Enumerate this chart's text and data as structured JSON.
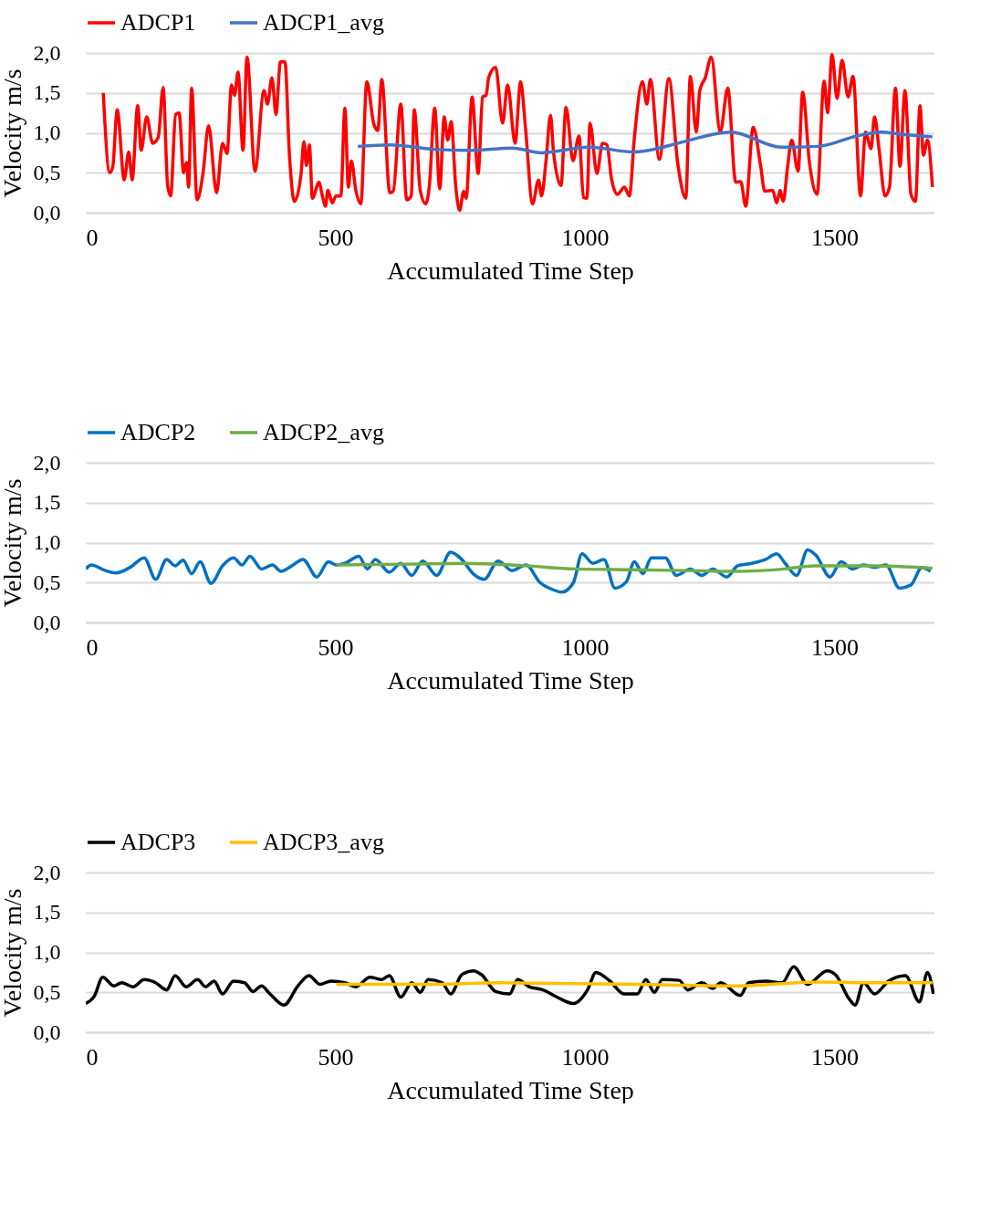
{
  "chart_data": [
    {
      "type": "line",
      "xlabel": "Accumulated Time Step",
      "ylabel": "Velocity m/s",
      "xlim": [
        0,
        1700
      ],
      "xticks": [
        0,
        500,
        1000,
        1500
      ],
      "ylim": [
        0,
        2
      ],
      "yticks": [
        {
          "value": 0,
          "label": "0,0"
        },
        {
          "value": 0.5,
          "label": "0,5"
        },
        {
          "value": 1,
          "label": "1,0"
        },
        {
          "value": 1.5,
          "label": "1,5"
        },
        {
          "value": 2,
          "label": "2,0"
        }
      ],
      "grid": "y",
      "legend": "top",
      "series": [
        {
          "name": "ADCP1",
          "color": "#ff0000",
          "x": [
            35,
            48,
            54,
            63,
            77,
            86,
            93,
            104,
            111,
            122,
            134,
            145,
            155,
            164,
            170,
            180,
            187,
            196,
            202,
            206,
            212,
            223,
            235,
            246,
            262,
            274,
            283,
            292,
            298,
            305,
            315,
            323,
            339,
            357,
            364,
            373,
            381,
            390,
            399,
            408,
            418,
            431,
            437,
            442,
            448,
            454,
            467,
            474,
            480,
            485,
            494,
            501,
            511,
            519,
            526,
            532,
            541,
            551,
            563,
            577,
            585,
            593,
            609,
            616,
            631,
            643,
            652,
            658,
            670,
            681,
            688,
            699,
            709,
            718,
            725,
            732,
            741,
            749,
            757,
            762,
            774,
            786,
            795,
            802,
            807,
            821,
            835,
            845,
            860,
            871,
            881,
            895,
            907,
            913,
            922,
            931,
            937,
            952,
            962,
            976,
            988,
            997,
            1004,
            1010,
            1024,
            1035,
            1044,
            1053,
            1065,
            1079,
            1089,
            1099,
            1115,
            1124,
            1131,
            1149,
            1168,
            1186,
            1202,
            1211,
            1223,
            1230,
            1241,
            1253,
            1271,
            1286,
            1302,
            1312,
            1322,
            1337,
            1352,
            1360,
            1376,
            1384,
            1391,
            1397,
            1406,
            1414,
            1427,
            1436,
            1450,
            1465,
            1479,
            1486,
            1495,
            1505,
            1515,
            1527,
            1537,
            1552,
            1562,
            1573,
            1580,
            1589,
            1601,
            1610,
            1622,
            1631,
            1641,
            1653,
            1662,
            1671,
            1678,
            1686,
            1696
          ],
          "values": [
            1.5,
            0.5,
            0.57,
            1.29,
            0.41,
            0.76,
            0.41,
            1.34,
            0.78,
            1.2,
            0.87,
            0.94,
            1.57,
            0.34,
            0.21,
            1.23,
            1.25,
            0.5,
            0.63,
            0.32,
            1.56,
            0.16,
            0.5,
            1.09,
            0.25,
            0.87,
            0.74,
            1.6,
            1.47,
            1.76,
            0.78,
            1.95,
            0.52,
            1.53,
            1.36,
            1.69,
            1.23,
            1.89,
            1.89,
            0.72,
            0.14,
            0.47,
            0.89,
            0.59,
            0.85,
            0.18,
            0.38,
            0.21,
            0.08,
            0.28,
            0.12,
            0.21,
            0.21,
            1.31,
            0.32,
            0.65,
            0.28,
            0.11,
            1.64,
            1.11,
            1.03,
            1.67,
            0.25,
            0.27,
            1.36,
            0.16,
            0.21,
            1.29,
            0.28,
            0.11,
            0.32,
            1.31,
            0.3,
            1.2,
            0.91,
            1.14,
            0.34,
            0.03,
            0.27,
            0.18,
            1.45,
            0.49,
            1.45,
            1.47,
            1.69,
            1.82,
            1.12,
            1.6,
            0.87,
            1.64,
            1.05,
            0.11,
            0.41,
            0.21,
            0.65,
            1.22,
            0.76,
            0.34,
            1.32,
            0.65,
            0.96,
            0.19,
            0.18,
            1.12,
            0.49,
            0.87,
            0.85,
            0.43,
            0.23,
            0.32,
            0.21,
            0.94,
            1.64,
            1.36,
            1.67,
            0.67,
            1.68,
            0.61,
            0.18,
            1.71,
            1.01,
            1.53,
            1.69,
            1.95,
            1.01,
            1.56,
            0.38,
            0.39,
            0.08,
            1.07,
            0.58,
            0.27,
            0.28,
            0.12,
            0.28,
            0.14,
            0.58,
            0.91,
            0.52,
            1.51,
            0.61,
            0.23,
            1.65,
            1.25,
            1.98,
            1.43,
            1.91,
            1.45,
            1.71,
            0.21,
            1.01,
            0.8,
            1.2,
            0.8,
            0.21,
            0.32,
            1.56,
            0.58,
            1.53,
            0.23,
            0.14,
            1.34,
            0.72,
            0.91,
            0.32
          ]
        },
        {
          "name": "ADCP1_avg",
          "color": "#4472c4",
          "x": [
            545,
            610,
            702,
            770,
            855,
            913,
            1008,
            1098,
            1187,
            1211,
            1292,
            1393,
            1467,
            1545,
            1593,
            1634,
            1696
          ],
          "values": [
            0.83,
            0.85,
            0.79,
            0.78,
            0.81,
            0.75,
            0.82,
            0.76,
            0.87,
            0.91,
            1.01,
            0.82,
            0.83,
            0.96,
            1.01,
            0.98,
            0.95
          ]
        }
      ]
    },
    {
      "type": "line",
      "xlabel": "Accumulated Time Step",
      "ylabel": "Velocity m/s",
      "xlim": [
        0,
        1700
      ],
      "xticks": [
        0,
        500,
        1000,
        1500
      ],
      "ylim": [
        0,
        2
      ],
      "yticks": [
        {
          "value": 0,
          "label": "0,0"
        },
        {
          "value": 0.5,
          "label": "0,5"
        },
        {
          "value": 1,
          "label": "1,0"
        },
        {
          "value": 1.5,
          "label": "1,5"
        },
        {
          "value": 2,
          "label": "2,0"
        }
      ],
      "grid": "y",
      "legend": "top",
      "series": [
        {
          "name": "ADCP2",
          "color": "#0070c0",
          "x": [
            0,
            11,
            39,
            61,
            89,
            117,
            140,
            162,
            179,
            195,
            212,
            229,
            251,
            274,
            296,
            313,
            329,
            352,
            374,
            391,
            413,
            435,
            463,
            486,
            502,
            519,
            547,
            564,
            580,
            608,
            631,
            653,
            675,
            703,
            731,
            753,
            776,
            798,
            826,
            854,
            882,
            910,
            932,
            954,
            977,
            994,
            1016,
            1038,
            1060,
            1083,
            1099,
            1116,
            1133,
            1161,
            1183,
            1211,
            1234,
            1256,
            1284,
            1306,
            1334,
            1362,
            1384,
            1401,
            1424,
            1446,
            1463,
            1491,
            1513,
            1536,
            1558,
            1580,
            1603,
            1630,
            1653,
            1675,
            1692
          ],
          "values": [
            0.67,
            0.72,
            0.65,
            0.62,
            0.69,
            0.81,
            0.54,
            0.79,
            0.71,
            0.78,
            0.61,
            0.76,
            0.49,
            0.71,
            0.81,
            0.72,
            0.83,
            0.67,
            0.72,
            0.64,
            0.71,
            0.79,
            0.57,
            0.76,
            0.72,
            0.74,
            0.83,
            0.67,
            0.79,
            0.63,
            0.74,
            0.59,
            0.77,
            0.59,
            0.88,
            0.79,
            0.61,
            0.54,
            0.77,
            0.65,
            0.72,
            0.5,
            0.42,
            0.38,
            0.5,
            0.86,
            0.74,
            0.79,
            0.43,
            0.51,
            0.76,
            0.61,
            0.81,
            0.81,
            0.59,
            0.67,
            0.59,
            0.67,
            0.57,
            0.71,
            0.74,
            0.79,
            0.86,
            0.74,
            0.59,
            0.91,
            0.84,
            0.57,
            0.76,
            0.67,
            0.72,
            0.69,
            0.72,
            0.43,
            0.47,
            0.69,
            0.64
          ]
        },
        {
          "name": "ADCP2_avg",
          "color": "#70ad47",
          "x": [
            502,
            640,
            760,
            880,
            980,
            1100,
            1200,
            1300,
            1400,
            1460,
            1580,
            1696
          ],
          "values": [
            0.72,
            0.73,
            0.74,
            0.71,
            0.67,
            0.66,
            0.65,
            0.64,
            0.67,
            0.71,
            0.71,
            0.68
          ]
        }
      ]
    },
    {
      "type": "line",
      "xlabel": "Accumulated Time Step",
      "ylabel": "Velocity m/s",
      "xlim": [
        0,
        1700
      ],
      "xticks": [
        0,
        500,
        1000,
        1500
      ],
      "ylim": [
        0,
        2
      ],
      "yticks": [
        {
          "value": 0,
          "label": "0,0"
        },
        {
          "value": 0.5,
          "label": "0,5"
        },
        {
          "value": 1,
          "label": "1,0"
        },
        {
          "value": 1.5,
          "label": "1,5"
        },
        {
          "value": 2,
          "label": "2,0"
        }
      ],
      "grid": "y",
      "legend": "top",
      "series": [
        {
          "name": "ADCP3",
          "color": "#000000",
          "x": [
            0,
            17,
            34,
            56,
            72,
            95,
            117,
            140,
            162,
            179,
            201,
            224,
            240,
            257,
            274,
            296,
            318,
            335,
            352,
            369,
            397,
            425,
            447,
            469,
            491,
            519,
            541,
            569,
            592,
            608,
            631,
            653,
            670,
            686,
            714,
            731,
            753,
            776,
            793,
            821,
            849,
            865,
            888,
            916,
            944,
            977,
            1005,
            1022,
            1050,
            1078,
            1105,
            1122,
            1139,
            1155,
            1189,
            1206,
            1234,
            1256,
            1272,
            1311,
            1328,
            1362,
            1395,
            1418,
            1446,
            1485,
            1502,
            1530,
            1541,
            1558,
            1580,
            1608,
            1642,
            1670,
            1686,
            1698
          ],
          "values": [
            0.36,
            0.45,
            0.69,
            0.58,
            0.62,
            0.57,
            0.66,
            0.62,
            0.53,
            0.71,
            0.57,
            0.66,
            0.57,
            0.64,
            0.48,
            0.64,
            0.62,
            0.51,
            0.58,
            0.48,
            0.34,
            0.58,
            0.71,
            0.6,
            0.64,
            0.62,
            0.57,
            0.69,
            0.66,
            0.71,
            0.44,
            0.62,
            0.5,
            0.66,
            0.62,
            0.48,
            0.72,
            0.77,
            0.72,
            0.51,
            0.48,
            0.66,
            0.57,
            0.53,
            0.44,
            0.36,
            0.53,
            0.75,
            0.64,
            0.48,
            0.48,
            0.66,
            0.5,
            0.66,
            0.65,
            0.53,
            0.62,
            0.55,
            0.62,
            0.46,
            0.62,
            0.64,
            0.62,
            0.82,
            0.6,
            0.77,
            0.72,
            0.41,
            0.34,
            0.62,
            0.48,
            0.64,
            0.71,
            0.38,
            0.75,
            0.48
          ]
        },
        {
          "name": "ADCP3_avg",
          "color": "#ffc000",
          "x": [
            502,
            700,
            830,
            960,
            1100,
            1300,
            1470,
            1560,
            1696
          ],
          "values": [
            0.6,
            0.6,
            0.62,
            0.61,
            0.6,
            0.58,
            0.63,
            0.62,
            0.62
          ]
        }
      ]
    }
  ]
}
